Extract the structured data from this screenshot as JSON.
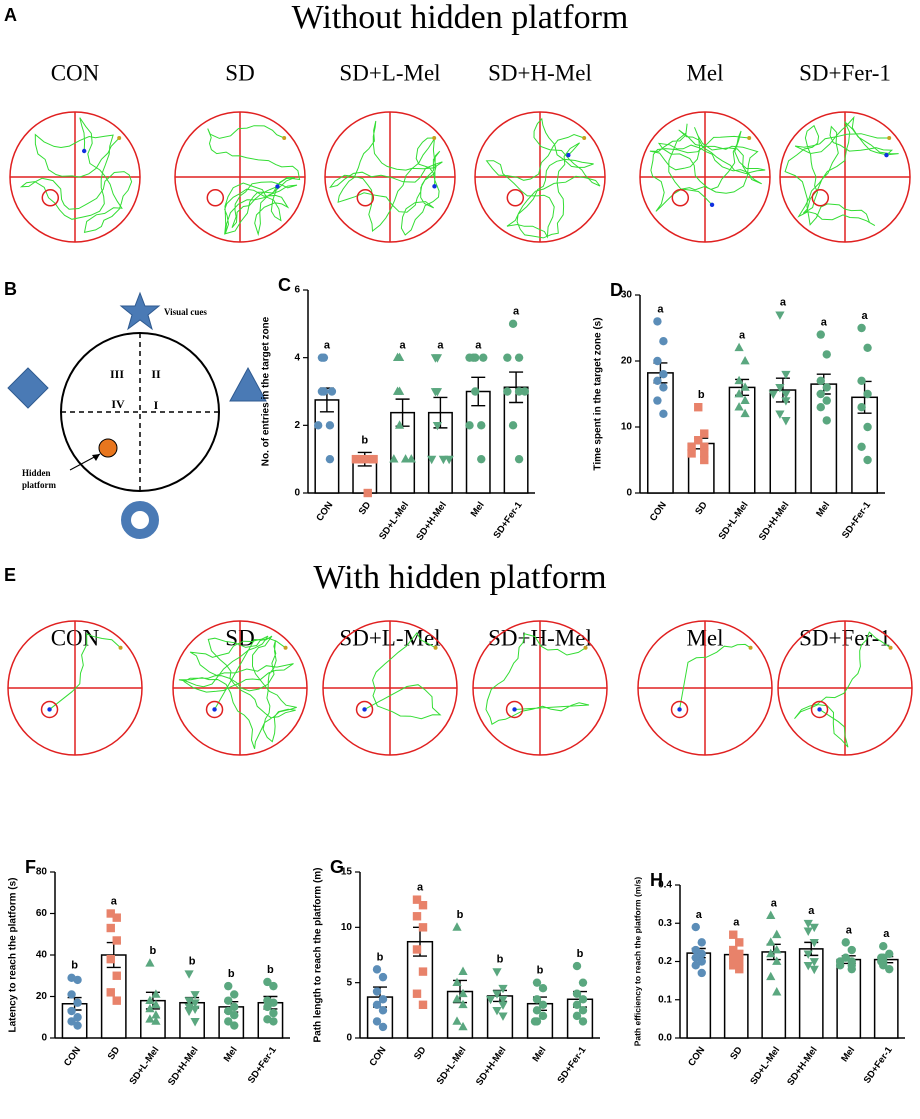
{
  "sections": [
    {
      "panel": "A",
      "title": "Without hidden platform",
      "groups": [
        "CON",
        "SD",
        "SD+L-Mel",
        "SD+H-Mel",
        "Mel",
        "SD+Fer-1"
      ]
    },
    {
      "panel": "E",
      "title": "With hidden platform",
      "groups": [
        "CON",
        "SD",
        "SD+L-Mel",
        "SD+H-Mel",
        "Mel",
        "SD+Fer-1"
      ]
    }
  ],
  "diagram": {
    "panel": "B",
    "cue": "Visual cues",
    "quadrants": [
      "III",
      "II",
      "IV",
      "I"
    ],
    "platform": [
      "Hidden",
      "platform"
    ]
  },
  "chart_data": [
    {
      "type": "bar",
      "panel": "C",
      "ylabel": "No. of entries in the target zone",
      "categories": [
        "CON",
        "SD",
        "SD+L-Mel",
        "SD+H-Mel",
        "Mel",
        "SD+Fer-1"
      ],
      "values": [
        2.75,
        1.0,
        2.375,
        2.375,
        3.0,
        3.125
      ],
      "errors": [
        0.35,
        0.2,
        0.4,
        0.45,
        0.42,
        0.45
      ],
      "annotations": [
        "a",
        "b",
        "a",
        "a",
        "a",
        "a"
      ],
      "points": [
        [
          4,
          4,
          3,
          3,
          3,
          2,
          2,
          1
        ],
        [
          1,
          1,
          1,
          1,
          1,
          1,
          1,
          0
        ],
        [
          4,
          4,
          3,
          3,
          2,
          1,
          1,
          1
        ],
        [
          4,
          4,
          3,
          3,
          2,
          1,
          1,
          1
        ],
        [
          4,
          4,
          4,
          4,
          3,
          2,
          2,
          1
        ],
        [
          5,
          4,
          4,
          3,
          3,
          3,
          2,
          1
        ]
      ],
      "colors": [
        "#5b8db8",
        "#e8826a",
        "#5aa77f",
        "#5aa77f",
        "#5aa77f",
        "#5aa77f"
      ],
      "markers": [
        "circle",
        "square",
        "triangle-up",
        "triangle-down",
        "circle",
        "circle"
      ],
      "ylim": [
        0,
        6
      ],
      "yticks": [
        0,
        2,
        4,
        6
      ]
    },
    {
      "type": "bar",
      "panel": "D",
      "ylabel": "Time spent  in the target zone (s)",
      "categories": [
        "CON",
        "SD",
        "SD+L-Mel",
        "SD+H-Mel",
        "Mel",
        "SD+Fer-1"
      ],
      "values": [
        18.2,
        7.5,
        16,
        15.6,
        16.5,
        14.5
      ],
      "errors": [
        1.5,
        0.8,
        1.2,
        1.8,
        1.5,
        2.4
      ],
      "annotations": [
        "a",
        "b",
        "a",
        "a",
        "a",
        "a"
      ],
      "points": [
        [
          26,
          23,
          20,
          18,
          17,
          16,
          14,
          12
        ],
        [
          13,
          9,
          8,
          7,
          7,
          6,
          6,
          5
        ],
        [
          22,
          20,
          17,
          16,
          15,
          14,
          13,
          12
        ],
        [
          27,
          18,
          16,
          15,
          15,
          14,
          12,
          11
        ],
        [
          24,
          21,
          17,
          16,
          15,
          14,
          13,
          11
        ],
        [
          25,
          22,
          17,
          15,
          13,
          10,
          7,
          5
        ]
      ],
      "colors": [
        "#5b8db8",
        "#e8826a",
        "#5aa77f",
        "#5aa77f",
        "#5aa77f",
        "#5aa77f"
      ],
      "markers": [
        "circle",
        "square",
        "triangle-up",
        "triangle-down",
        "circle",
        "circle"
      ],
      "ylim": [
        0,
        30
      ],
      "yticks": [
        0,
        10,
        20,
        30
      ]
    },
    {
      "type": "bar",
      "panel": "F",
      "ylabel": "Latency to reach the platform (s)",
      "categories": [
        "CON",
        "SD",
        "SD+L-Mel",
        "SD+H-Mel",
        "Mel",
        "SD+Fer-1"
      ],
      "values": [
        16.5,
        40,
        18,
        17,
        15,
        17
      ],
      "errors": [
        3,
        6,
        4,
        2.5,
        2.5,
        3
      ],
      "annotations": [
        "b",
        "a",
        "b",
        "b",
        "b",
        "b"
      ],
      "points": [
        [
          29,
          28,
          21,
          17,
          13,
          10,
          8,
          6
        ],
        [
          60,
          58,
          53,
          47,
          38,
          30,
          22,
          18
        ],
        [
          36,
          21,
          18,
          16,
          14,
          11,
          9,
          8
        ],
        [
          31,
          21,
          18,
          17,
          15,
          14,
          13,
          8
        ],
        [
          25,
          21,
          18,
          15,
          13,
          11,
          8,
          6
        ],
        [
          27,
          25,
          18,
          17,
          15,
          12,
          9,
          8
        ]
      ],
      "colors": [
        "#5b8db8",
        "#e8826a",
        "#5aa77f",
        "#5aa77f",
        "#5aa77f",
        "#5aa77f"
      ],
      "markers": [
        "circle",
        "square",
        "triangle-up",
        "triangle-down",
        "circle",
        "circle"
      ],
      "ylim": [
        0,
        80
      ],
      "yticks": [
        0,
        20,
        40,
        60,
        80
      ]
    },
    {
      "type": "bar",
      "panel": "G",
      "ylabel": "Path length to reach the platform (m)",
      "categories": [
        "CON",
        "SD",
        "SD+L-Mel",
        "SD+H-Mel",
        "Mel",
        "SD+Fer-1"
      ],
      "values": [
        3.7,
        8.7,
        4.2,
        3.8,
        3.1,
        3.5
      ],
      "errors": [
        0.9,
        1.3,
        1,
        0.5,
        0.6,
        0.7
      ],
      "annotations": [
        "b",
        "a",
        "b",
        "b",
        "b",
        "b"
      ],
      "points": [
        [
          6.2,
          5.5,
          4.2,
          3.5,
          3,
          2.5,
          1.5,
          1
        ],
        [
          12.5,
          12,
          11,
          10,
          8,
          6,
          4,
          3
        ],
        [
          10,
          6,
          5,
          4,
          3.5,
          3,
          1.5,
          1
        ],
        [
          6,
          4.5,
          4,
          3.5,
          3.5,
          3,
          2.5,
          2
        ],
        [
          5,
          4.5,
          3.5,
          3,
          2.5,
          2,
          1.5,
          1.5
        ],
        [
          6.5,
          5,
          4,
          3.5,
          3,
          2.5,
          2,
          1.5
        ]
      ],
      "colors": [
        "#5b8db8",
        "#e8826a",
        "#5aa77f",
        "#5aa77f",
        "#5aa77f",
        "#5aa77f"
      ],
      "markers": [
        "circle",
        "square",
        "triangle-up",
        "triangle-down",
        "circle",
        "circle"
      ],
      "ylim": [
        0,
        15
      ],
      "yticks": [
        0,
        5,
        10,
        15
      ]
    },
    {
      "type": "bar",
      "panel": "H",
      "ylabel": "Path efficiency to reach the platform (m/s)",
      "categories": [
        "CON",
        "SD",
        "SD+L-Mel",
        "SD+H-Mel",
        "Mel",
        "SD+Fer-1"
      ],
      "values": [
        0.222,
        0.218,
        0.225,
        0.233,
        0.205,
        0.205
      ],
      "errors": [
        0.012,
        0.01,
        0.02,
        0.017,
        0.01,
        0.008
      ],
      "annotations": [
        "a",
        "a",
        "a",
        "a",
        "a",
        "a"
      ],
      "points": [
        [
          0.29,
          0.25,
          0.23,
          0.22,
          0.21,
          0.2,
          0.19,
          0.17
        ],
        [
          0.27,
          0.25,
          0.23,
          0.22,
          0.21,
          0.2,
          0.19,
          0.18
        ],
        [
          0.32,
          0.27,
          0.25,
          0.23,
          0.22,
          0.2,
          0.16,
          0.12
        ],
        [
          0.3,
          0.29,
          0.28,
          0.25,
          0.22,
          0.2,
          0.19,
          0.18
        ],
        [
          0.25,
          0.23,
          0.21,
          0.2,
          0.2,
          0.19,
          0.19,
          0.18
        ],
        [
          0.24,
          0.22,
          0.21,
          0.21,
          0.2,
          0.2,
          0.19,
          0.18
        ]
      ],
      "colors": [
        "#5b8db8",
        "#e8826a",
        "#5aa77f",
        "#5aa77f",
        "#5aa77f",
        "#5aa77f"
      ],
      "markers": [
        "circle",
        "square",
        "triangle-up",
        "triangle-down",
        "circle",
        "circle"
      ],
      "ylim": [
        0,
        0.4
      ],
      "yticks": [
        {
          "value": 0,
          "label": "0.0"
        },
        0.1,
        0.2,
        0.3,
        0.4
      ]
    }
  ]
}
